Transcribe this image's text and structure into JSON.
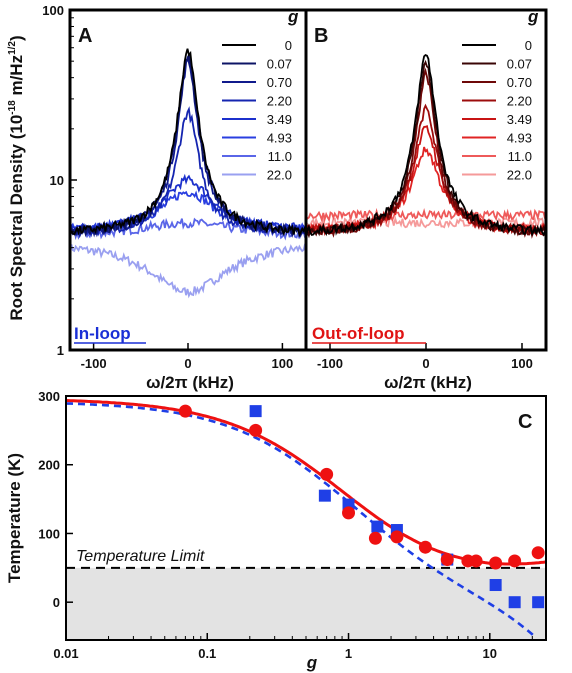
{
  "chart_data": [
    {
      "type": "line",
      "panel": "A",
      "ylabel_main": "Root Spectral Density (10",
      "ylabel_exp": "-18",
      "ylabel_unit": " m/Hz",
      "ylabel_unit_exp": "1/2",
      "ylabel_close": ")",
      "xlabel": "ω/2π (kHz)",
      "xlim": [
        -125,
        125
      ],
      "ylim": [
        1,
        100
      ],
      "yscale": "log",
      "xticks": [
        "-100",
        "0",
        "100"
      ],
      "yticks": [
        "1",
        "10",
        "100"
      ],
      "legend_title": "g",
      "tag": "In-loop",
      "legend": [
        "0",
        "0.07",
        "0.70",
        "2.20",
        "3.49",
        "4.93",
        "11.0",
        "22.0"
      ],
      "colors": [
        "#000000",
        "#0d1466",
        "#101a8c",
        "#1525b0",
        "#1c30cc",
        "#2a3fe0",
        "#5a66e8",
        "#9aa0f0"
      ],
      "series": [
        {
          "name": "0",
          "peak": 58,
          "floor": 4.8,
          "width": 8
        },
        {
          "name": "0.07",
          "peak": 54,
          "floor": 4.8,
          "width": 8
        },
        {
          "name": "0.70",
          "peak": 50,
          "floor": 4.8,
          "width": 8
        },
        {
          "name": "2.20",
          "peak": 25,
          "floor": 4.9,
          "width": 10
        },
        {
          "name": "3.49",
          "peak": 10,
          "floor": 5.0,
          "width": 26
        },
        {
          "name": "4.93",
          "peak": 8.5,
          "floor": 5.0,
          "width": 30
        },
        {
          "name": "11.0",
          "peak": 5.6,
          "floor": 4.6,
          "width": 60
        },
        {
          "name": "22.0",
          "peak": 2.2,
          "floor": 4.4,
          "width": 60
        }
      ]
    },
    {
      "type": "line",
      "panel": "B",
      "xlabel": "ω/2π (kHz)",
      "xlim": [
        -125,
        125
      ],
      "ylim": [
        1,
        100
      ],
      "yscale": "log",
      "xticks": [
        "-100",
        "0",
        "100"
      ],
      "legend_title": "g",
      "tag": "Out-of-loop",
      "legend": [
        "0",
        "0.07",
        "0.70",
        "2.20",
        "3.49",
        "4.93",
        "11.0",
        "22.0"
      ],
      "colors": [
        "#000000",
        "#3a0505",
        "#6e0808",
        "#9c0c0c",
        "#c81414",
        "#e02424",
        "#ee5a5a",
        "#f59a9a"
      ],
      "series": [
        {
          "name": "0",
          "peak": 55,
          "floor": 4.8,
          "width": 8
        },
        {
          "name": "0.07",
          "peak": 48,
          "floor": 4.8,
          "width": 8
        },
        {
          "name": "0.70",
          "peak": 42,
          "floor": 4.8,
          "width": 8
        },
        {
          "name": "2.20",
          "peak": 26,
          "floor": 4.9,
          "width": 10
        },
        {
          "name": "3.49",
          "peak": 20,
          "floor": 5.0,
          "width": 12
        },
        {
          "name": "4.93",
          "peak": 15,
          "floor": 5.0,
          "width": 14
        },
        {
          "name": "11.0",
          "peak": 6.2,
          "floor": 6.2,
          "width": 40
        },
        {
          "name": "22.0",
          "peak": 5.6,
          "floor": 5.6,
          "width": 40
        }
      ]
    },
    {
      "type": "scatter",
      "panel": "C",
      "xlabel": "g",
      "ylabel": "Temperature (K)",
      "xscale": "log",
      "xlim": [
        0.01,
        25
      ],
      "ylim": [
        -55,
        300
      ],
      "xticks": [
        "0.01",
        "0.1",
        "1",
        "10"
      ],
      "xtick_values": [
        0.01,
        0.1,
        1,
        10
      ],
      "yticks": [
        "0",
        "100",
        "200",
        "300"
      ],
      "ytick_values": [
        0,
        100,
        200,
        300
      ],
      "annotation": "Temperature Limit",
      "limit_value": 50,
      "red_points": {
        "x": [
          0.07,
          0.22,
          0.7,
          1.0,
          1.55,
          2.2,
          3.5,
          5.0,
          7.0,
          8.0,
          11.0,
          15.0,
          22.0
        ],
        "y": [
          278,
          250,
          186,
          130,
          93,
          95,
          80,
          62,
          60,
          60,
          57,
          60,
          72
        ]
      },
      "blue_points": {
        "x": [
          0.22,
          0.68,
          1.0,
          1.6,
          2.2,
          5.0,
          11.0,
          15.0,
          22.0
        ],
        "y": [
          278,
          155,
          142,
          110,
          105,
          62,
          25,
          0,
          0
        ]
      },
      "colors": {
        "red": "#ee1111",
        "blue": "#1f3fe6",
        "shade": "#e3e3e3"
      },
      "theory_T0": 292,
      "theory_Tmin": 50
    }
  ]
}
